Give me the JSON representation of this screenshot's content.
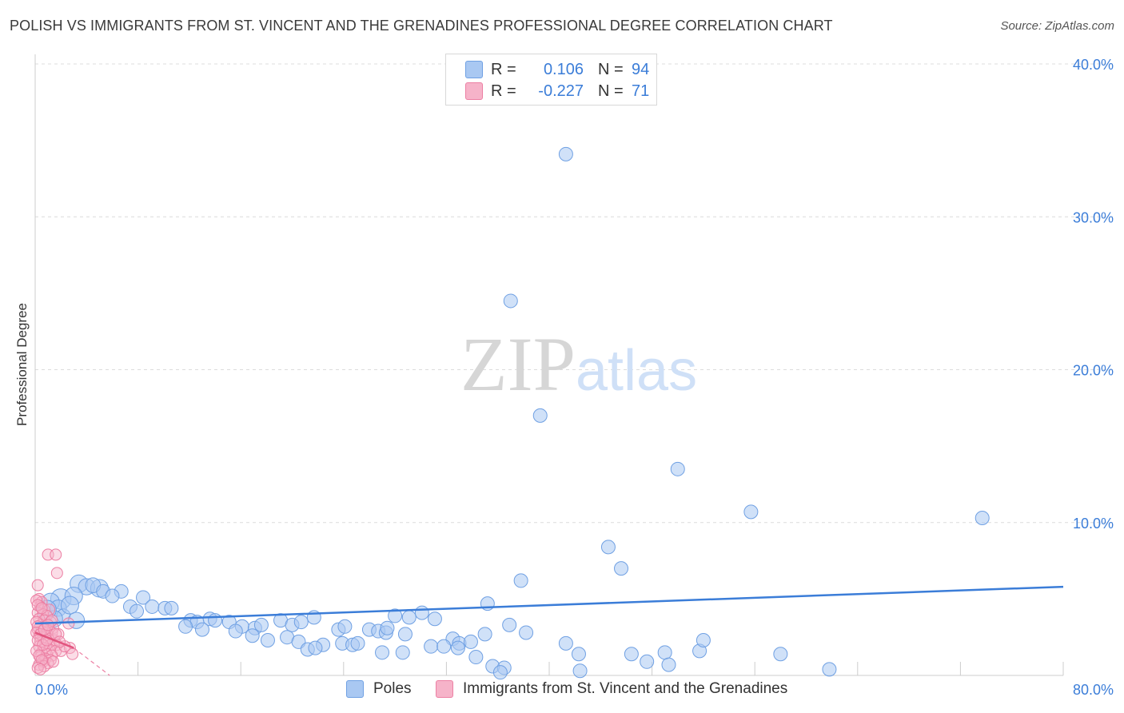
{
  "title": "POLISH VS IMMIGRANTS FROM ST. VINCENT AND THE GRENADINES PROFESSIONAL DEGREE CORRELATION CHART",
  "source": "Source: ZipAtlas.com",
  "legend": {
    "rows": [
      {
        "r_label": "R =",
        "r_value": "0.106",
        "n_label": "N =",
        "n_value": "94",
        "color": "#a9c8f2"
      },
      {
        "r_label": "R =",
        "r_value": "-0.227",
        "n_label": "N =",
        "n_value": "71",
        "color": "#f6b3c9"
      }
    ]
  },
  "bottom_legend": {
    "items": [
      {
        "label": "Poles",
        "color": "#a9c8f2"
      },
      {
        "label": "Immigrants from St. Vincent and the Grenadines",
        "color": "#f6b3c9"
      }
    ]
  },
  "colors": {
    "blue_fill": "#a9c8f2",
    "blue_stroke": "#6fa0e3",
    "blue_line": "#3b7dd8",
    "pink_fill": "#f6b3c9",
    "pink_stroke": "#ec7fa3",
    "pink_line": "#e2557f",
    "axis_text": "#3b7dd8",
    "grid": "#dcdcdc"
  },
  "chart_data": {
    "type": "scatter",
    "title": "POLISH VS IMMIGRANTS FROM ST. VINCENT AND THE GRENADINES PROFESSIONAL DEGREE CORRELATION CHART",
    "xlabel": "",
    "ylabel": "Professional Degree",
    "xlim": [
      0,
      80
    ],
    "ylim": [
      0,
      40
    ],
    "x_tick_labels": [
      "0.0%",
      "80.0%"
    ],
    "y_ticks": [
      10,
      20,
      30,
      40
    ],
    "y_tick_labels": [
      "10.0%",
      "20.0%",
      "30.0%",
      "40.0%"
    ],
    "grid": true,
    "legend_position": "top-center",
    "series": [
      {
        "name": "Poles",
        "color": "#a9c8f2",
        "trend": {
          "x": [
            0,
            80
          ],
          "y": [
            3.4,
            5.8
          ]
        },
        "points": [
          [
            41.3,
            34.1
          ],
          [
            37.0,
            24.5
          ],
          [
            39.3,
            17.0
          ],
          [
            50.0,
            13.5
          ],
          [
            55.7,
            10.7
          ],
          [
            73.7,
            10.3
          ],
          [
            44.6,
            8.4
          ],
          [
            45.6,
            7.0
          ],
          [
            37.8,
            6.2
          ],
          [
            3.4,
            6.0
          ],
          [
            4.0,
            5.8
          ],
          [
            5.0,
            5.7
          ],
          [
            4.5,
            5.9
          ],
          [
            6.7,
            5.5
          ],
          [
            5.3,
            5.5
          ],
          [
            2.0,
            5.0
          ],
          [
            3.0,
            5.2
          ],
          [
            8.4,
            5.1
          ],
          [
            7.4,
            4.5
          ],
          [
            9.1,
            4.5
          ],
          [
            10.1,
            4.4
          ],
          [
            10.6,
            4.4
          ],
          [
            7.9,
            4.2
          ],
          [
            1.2,
            4.8
          ],
          [
            1.8,
            4.4
          ],
          [
            2.2,
            3.9
          ],
          [
            6.0,
            5.2
          ],
          [
            1.5,
            3.7
          ],
          [
            35.2,
            4.7
          ],
          [
            30.1,
            4.1
          ],
          [
            29.1,
            3.8
          ],
          [
            28.0,
            3.9
          ],
          [
            31.1,
            3.7
          ],
          [
            12.1,
            3.6
          ],
          [
            12.6,
            3.5
          ],
          [
            13.6,
            3.7
          ],
          [
            14.0,
            3.6
          ],
          [
            15.1,
            3.5
          ],
          [
            16.1,
            3.2
          ],
          [
            17.1,
            3.1
          ],
          [
            17.6,
            3.3
          ],
          [
            19.1,
            3.6
          ],
          [
            20.0,
            3.3
          ],
          [
            20.7,
            3.5
          ],
          [
            21.7,
            3.8
          ],
          [
            23.6,
            3.0
          ],
          [
            24.1,
            3.2
          ],
          [
            26.0,
            3.0
          ],
          [
            26.7,
            2.9
          ],
          [
            27.3,
            2.8
          ],
          [
            28.8,
            2.7
          ],
          [
            11.7,
            3.2
          ],
          [
            13.0,
            3.0
          ],
          [
            15.6,
            2.9
          ],
          [
            16.9,
            2.6
          ],
          [
            18.1,
            2.3
          ],
          [
            19.6,
            2.5
          ],
          [
            20.5,
            2.2
          ],
          [
            22.4,
            2.0
          ],
          [
            23.9,
            2.1
          ],
          [
            24.7,
            2.0
          ],
          [
            25.1,
            2.1
          ],
          [
            27.4,
            3.1
          ],
          [
            32.5,
            2.4
          ],
          [
            33.0,
            2.1
          ],
          [
            33.9,
            2.2
          ],
          [
            35.0,
            2.7
          ],
          [
            36.9,
            3.3
          ],
          [
            38.2,
            2.8
          ],
          [
            30.8,
            1.9
          ],
          [
            31.8,
            1.9
          ],
          [
            32.9,
            1.8
          ],
          [
            21.2,
            1.7
          ],
          [
            21.8,
            1.8
          ],
          [
            27.0,
            1.5
          ],
          [
            28.6,
            1.5
          ],
          [
            34.3,
            1.2
          ],
          [
            35.6,
            0.6
          ],
          [
            36.5,
            0.5
          ],
          [
            36.2,
            0.2
          ],
          [
            41.3,
            2.1
          ],
          [
            42.3,
            1.4
          ],
          [
            42.4,
            0.3
          ],
          [
            46.4,
            1.4
          ],
          [
            47.6,
            0.9
          ],
          [
            49.0,
            1.5
          ],
          [
            49.3,
            0.7
          ],
          [
            51.7,
            1.6
          ],
          [
            52.0,
            2.3
          ],
          [
            58.0,
            1.4
          ],
          [
            61.8,
            0.4
          ],
          [
            0.9,
            4.3
          ],
          [
            2.7,
            4.6
          ],
          [
            3.2,
            3.6
          ]
        ],
        "sizes": [
          1,
          1,
          1,
          1,
          1,
          1,
          1,
          1,
          1,
          1.3,
          1.2,
          1.3,
          1.1,
          1,
          1,
          1.5,
          1.3,
          1,
          1,
          1,
          1,
          1,
          1,
          1.3,
          1.2,
          1,
          1,
          1.2,
          1,
          1,
          1,
          1,
          1,
          1,
          1,
          1,
          1,
          1,
          1,
          1,
          1,
          1,
          1,
          1,
          1,
          1,
          1,
          1,
          1,
          1,
          1,
          1,
          1,
          1,
          1,
          1,
          1,
          1,
          1,
          1,
          1,
          1,
          1,
          1,
          1,
          1,
          1,
          1,
          1,
          1,
          1,
          1,
          1,
          1,
          1,
          1,
          1,
          1,
          1,
          1,
          1,
          1,
          1,
          1,
          1,
          1,
          1,
          1,
          1,
          1,
          1,
          1.4,
          1.3,
          1.2
        ]
      },
      {
        "name": "Immigrants from St. Vincent and the Grenadines",
        "color": "#f6b3c9",
        "trend": {
          "x": [
            0,
            3.0
          ],
          "y": [
            2.8,
            1.8
          ],
          "dashed_extension": {
            "x": [
              3.0,
              5.8
            ],
            "y": [
              1.8,
              0
            ]
          }
        },
        "points": [
          [
            1.0,
            7.9
          ],
          [
            1.6,
            7.9
          ],
          [
            1.7,
            6.7
          ],
          [
            0.2,
            5.9
          ],
          [
            0.3,
            5.0
          ],
          [
            0.5,
            4.8
          ],
          [
            0.4,
            4.5
          ],
          [
            0.7,
            4.3
          ],
          [
            1.1,
            4.3
          ],
          [
            0.2,
            4.1
          ],
          [
            0.6,
            4.0
          ],
          [
            0.9,
            3.9
          ],
          [
            0.3,
            3.7
          ],
          [
            0.7,
            3.6
          ],
          [
            1.2,
            3.5
          ],
          [
            0.4,
            3.3
          ],
          [
            0.8,
            3.2
          ],
          [
            1.4,
            3.1
          ],
          [
            0.2,
            3.0
          ],
          [
            0.5,
            2.9
          ],
          [
            0.9,
            2.8
          ],
          [
            1.3,
            2.8
          ],
          [
            0.3,
            2.6
          ],
          [
            0.6,
            2.5
          ],
          [
            1.0,
            2.4
          ],
          [
            1.5,
            2.3
          ],
          [
            0.4,
            2.2
          ],
          [
            0.8,
            2.1
          ],
          [
            1.2,
            2.0
          ],
          [
            1.7,
            2.0
          ],
          [
            0.3,
            1.9
          ],
          [
            0.7,
            1.8
          ],
          [
            1.1,
            1.7
          ],
          [
            1.6,
            1.6
          ],
          [
            2.0,
            1.6
          ],
          [
            0.5,
            1.5
          ],
          [
            0.9,
            1.4
          ],
          [
            1.3,
            1.3
          ],
          [
            0.4,
            1.2
          ],
          [
            0.8,
            1.1
          ],
          [
            1.2,
            1.0
          ],
          [
            0.6,
            0.9
          ],
          [
            1.0,
            0.8
          ],
          [
            0.3,
            0.7
          ],
          [
            0.7,
            0.6
          ],
          [
            1.4,
            0.9
          ],
          [
            2.6,
            3.4
          ],
          [
            2.7,
            1.8
          ],
          [
            2.9,
            1.4
          ],
          [
            2.3,
            1.9
          ],
          [
            1.8,
            2.7
          ],
          [
            0.1,
            4.9
          ],
          [
            0.2,
            4.6
          ],
          [
            0.5,
            4.4
          ],
          [
            0.1,
            3.5
          ],
          [
            0.2,
            3.2
          ],
          [
            0.1,
            2.8
          ],
          [
            0.4,
            2.7
          ],
          [
            0.2,
            2.3
          ],
          [
            0.6,
            2.0
          ],
          [
            0.1,
            1.6
          ],
          [
            0.3,
            1.3
          ],
          [
            0.5,
            1.0
          ],
          [
            0.9,
            2.3
          ],
          [
            1.3,
            3.6
          ],
          [
            1.6,
            2.7
          ],
          [
            1.9,
            2.2
          ],
          [
            0.7,
            3.0
          ],
          [
            1.0,
            3.3
          ],
          [
            0.2,
            0.5
          ],
          [
            0.4,
            0.4
          ]
        ]
      }
    ]
  }
}
